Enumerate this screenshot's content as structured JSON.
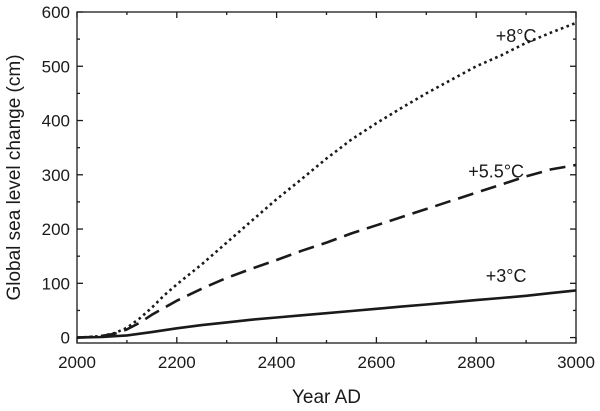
{
  "chart_data": {
    "type": "line",
    "title": "",
    "xlabel": "Year AD",
    "ylabel": "Global sea level change (cm)",
    "xlim": [
      2000,
      3000
    ],
    "ylim": [
      -10,
      600
    ],
    "xticks": [
      2000,
      2200,
      2400,
      2600,
      2800,
      3000
    ],
    "xtick_labels": [
      "2000",
      "2200",
      "2400",
      "2600",
      "2800",
      "3000"
    ],
    "yticks": [
      0,
      100,
      200,
      300,
      400,
      500,
      600
    ],
    "ytick_labels": [
      "0",
      "100",
      "200",
      "300",
      "400",
      "500",
      "600"
    ],
    "grid": false,
    "legend": "none",
    "series": [
      {
        "name": "+8°C",
        "line_style": "dotted",
        "color": "#1a1a1a",
        "x": [
          2000,
          2025,
          2050,
          2075,
          2100,
          2125,
          2150,
          2175,
          2200,
          2250,
          2300,
          2350,
          2400,
          2450,
          2500,
          2550,
          2600,
          2650,
          2700,
          2750,
          2800,
          2850,
          2900,
          2950,
          3000
        ],
        "y": [
          0,
          1,
          3,
          8,
          18,
          35,
          55,
          78,
          98,
          135,
          175,
          215,
          255,
          292,
          330,
          365,
          395,
          423,
          450,
          475,
          500,
          520,
          543,
          562,
          580
        ]
      },
      {
        "name": "+5.5°C",
        "line_style": "dashed",
        "color": "#1a1a1a",
        "x": [
          2000,
          2025,
          2050,
          2075,
          2100,
          2125,
          2150,
          2175,
          2200,
          2250,
          2300,
          2350,
          2400,
          2450,
          2500,
          2550,
          2600,
          2650,
          2700,
          2750,
          2800,
          2850,
          2900,
          2950,
          3000
        ],
        "y": [
          0,
          1,
          3,
          7,
          15,
          27,
          42,
          55,
          68,
          90,
          110,
          127,
          143,
          160,
          175,
          192,
          207,
          222,
          237,
          252,
          267,
          282,
          297,
          310,
          318
        ]
      },
      {
        "name": "+3°C",
        "line_style": "solid",
        "color": "#1a1a1a",
        "x": [
          2000,
          2050,
          2100,
          2150,
          2200,
          2250,
          2300,
          2350,
          2400,
          2450,
          2500,
          2550,
          2600,
          2650,
          2700,
          2750,
          2800,
          2850,
          2900,
          2950,
          3000
        ],
        "y": [
          0,
          1,
          4,
          10,
          17,
          23,
          28,
          33,
          37,
          41,
          45,
          49,
          53,
          57,
          61,
          65,
          69,
          73,
          77,
          82,
          87
        ]
      }
    ],
    "annotations": [
      {
        "text": "+8°C",
        "series": "+8°C",
        "x": 2880,
        "y": 545
      },
      {
        "text": "+5.5°C",
        "series": "+5.5°C",
        "x": 2840,
        "y": 295
      },
      {
        "text": "+3°C",
        "series": "+3°C",
        "x": 2860,
        "y": 102
      }
    ]
  }
}
